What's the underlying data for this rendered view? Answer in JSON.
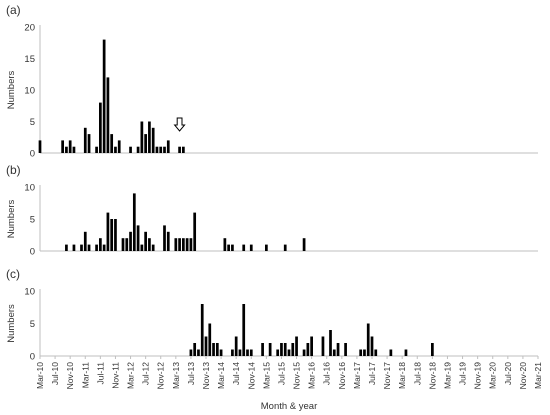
{
  "chart_data": [
    {
      "type": "bar",
      "panel_label": "(a)",
      "ylabel": "Numbers",
      "ylim": [
        0,
        20
      ],
      "yticks": [
        0,
        5,
        10,
        15,
        20
      ],
      "data": [
        {
          "x": "2010-03",
          "y": 2
        },
        {
          "x": "2010-09",
          "y": 2
        },
        {
          "x": "2010-10",
          "y": 1
        },
        {
          "x": "2010-11",
          "y": 2
        },
        {
          "x": "2010-12",
          "y": 1
        },
        {
          "x": "2011-03",
          "y": 4
        },
        {
          "x": "2011-04",
          "y": 3
        },
        {
          "x": "2011-06",
          "y": 1
        },
        {
          "x": "2011-07",
          "y": 8
        },
        {
          "x": "2011-08",
          "y": 18
        },
        {
          "x": "2011-09",
          "y": 12
        },
        {
          "x": "2011-10",
          "y": 3
        },
        {
          "x": "2011-11",
          "y": 1
        },
        {
          "x": "2011-12",
          "y": 2
        },
        {
          "x": "2012-03",
          "y": 1
        },
        {
          "x": "2012-05",
          "y": 1
        },
        {
          "x": "2012-06",
          "y": 5
        },
        {
          "x": "2012-07",
          "y": 3
        },
        {
          "x": "2012-08",
          "y": 5
        },
        {
          "x": "2012-09",
          "y": 4
        },
        {
          "x": "2012-10",
          "y": 1
        },
        {
          "x": "2012-11",
          "y": 1
        },
        {
          "x": "2012-12",
          "y": 1
        },
        {
          "x": "2013-01",
          "y": 2
        },
        {
          "x": "2013-04",
          "y": 1
        },
        {
          "x": "2013-05",
          "y": 1
        }
      ],
      "annotation": {
        "type": "arrow-down",
        "x": "2013-04",
        "y": 3.5
      }
    },
    {
      "type": "bar",
      "panel_label": "(b)",
      "ylabel": "Numbers",
      "ylim": [
        0,
        10
      ],
      "yticks": [
        0,
        5,
        10
      ],
      "data": [
        {
          "x": "2010-10",
          "y": 1
        },
        {
          "x": "2010-12",
          "y": 1
        },
        {
          "x": "2011-02",
          "y": 1
        },
        {
          "x": "2011-03",
          "y": 3
        },
        {
          "x": "2011-04",
          "y": 1
        },
        {
          "x": "2011-06",
          "y": 1
        },
        {
          "x": "2011-07",
          "y": 2
        },
        {
          "x": "2011-08",
          "y": 1
        },
        {
          "x": "2011-09",
          "y": 6
        },
        {
          "x": "2011-10",
          "y": 5
        },
        {
          "x": "2011-11",
          "y": 5
        },
        {
          "x": "2012-01",
          "y": 2
        },
        {
          "x": "2012-02",
          "y": 2
        },
        {
          "x": "2012-03",
          "y": 3
        },
        {
          "x": "2012-04",
          "y": 9
        },
        {
          "x": "2012-05",
          "y": 4
        },
        {
          "x": "2012-06",
          "y": 1
        },
        {
          "x": "2012-07",
          "y": 3
        },
        {
          "x": "2012-08",
          "y": 2
        },
        {
          "x": "2012-09",
          "y": 1
        },
        {
          "x": "2012-12",
          "y": 4
        },
        {
          "x": "2013-01",
          "y": 3
        },
        {
          "x": "2013-03",
          "y": 2
        },
        {
          "x": "2013-04",
          "y": 2
        },
        {
          "x": "2013-05",
          "y": 2
        },
        {
          "x": "2013-06",
          "y": 2
        },
        {
          "x": "2013-07",
          "y": 2
        },
        {
          "x": "2013-08",
          "y": 6
        },
        {
          "x": "2014-04",
          "y": 2
        },
        {
          "x": "2014-05",
          "y": 1
        },
        {
          "x": "2014-06",
          "y": 1
        },
        {
          "x": "2014-09",
          "y": 1
        },
        {
          "x": "2014-11",
          "y": 1
        },
        {
          "x": "2015-03",
          "y": 1
        },
        {
          "x": "2015-08",
          "y": 1
        },
        {
          "x": "2016-01",
          "y": 2
        }
      ]
    },
    {
      "type": "bar",
      "panel_label": "(c)",
      "ylabel": "Numbers",
      "ylim": [
        0,
        10
      ],
      "yticks": [
        0,
        5,
        10
      ],
      "data": [
        {
          "x": "2013-07",
          "y": 1
        },
        {
          "x": "2013-08",
          "y": 2
        },
        {
          "x": "2013-09",
          "y": 1
        },
        {
          "x": "2013-10",
          "y": 8
        },
        {
          "x": "2013-11",
          "y": 3
        },
        {
          "x": "2013-12",
          "y": 5
        },
        {
          "x": "2014-01",
          "y": 2
        },
        {
          "x": "2014-02",
          "y": 2
        },
        {
          "x": "2014-03",
          "y": 1
        },
        {
          "x": "2014-06",
          "y": 1
        },
        {
          "x": "2014-07",
          "y": 3
        },
        {
          "x": "2014-08",
          "y": 1
        },
        {
          "x": "2014-09",
          "y": 8
        },
        {
          "x": "2014-10",
          "y": 1
        },
        {
          "x": "2014-11",
          "y": 1
        },
        {
          "x": "2015-02",
          "y": 2
        },
        {
          "x": "2015-04",
          "y": 2
        },
        {
          "x": "2015-06",
          "y": 1
        },
        {
          "x": "2015-07",
          "y": 2
        },
        {
          "x": "2015-08",
          "y": 2
        },
        {
          "x": "2015-09",
          "y": 1
        },
        {
          "x": "2015-10",
          "y": 2
        },
        {
          "x": "2015-11",
          "y": 3
        },
        {
          "x": "2016-01",
          "y": 1
        },
        {
          "x": "2016-02",
          "y": 2
        },
        {
          "x": "2016-03",
          "y": 3
        },
        {
          "x": "2016-06",
          "y": 3
        },
        {
          "x": "2016-08",
          "y": 4
        },
        {
          "x": "2016-09",
          "y": 1
        },
        {
          "x": "2016-10",
          "y": 2
        },
        {
          "x": "2016-12",
          "y": 2
        },
        {
          "x": "2017-04",
          "y": 1
        },
        {
          "x": "2017-05",
          "y": 1
        },
        {
          "x": "2017-06",
          "y": 5
        },
        {
          "x": "2017-07",
          "y": 3
        },
        {
          "x": "2017-08",
          "y": 1
        },
        {
          "x": "2017-12",
          "y": 1
        },
        {
          "x": "2018-04",
          "y": 1
        },
        {
          "x": "2018-11",
          "y": 2
        }
      ]
    }
  ],
  "x_axis": {
    "label": "Month & year",
    "range": [
      "2010-03",
      "2021-03"
    ],
    "tick_labels": [
      "Mar-10",
      "Jul-10",
      "Nov-10",
      "Mar-11",
      "Jul-11",
      "Nov-11",
      "Mar-12",
      "Jul-12",
      "Nov-12",
      "Mar-13",
      "Jul-13",
      "Nov-13",
      "Mar-14",
      "Jul-14",
      "Nov-14",
      "Mar-15",
      "Jul-15",
      "Nov-15",
      "Mar-16",
      "Jul-16",
      "Nov-16",
      "Mar-17",
      "Jul-17",
      "Nov-17",
      "Mar-18",
      "Jul-18",
      "Nov-18",
      "Mar-19",
      "Jul-19",
      "Nov-19",
      "Mar-20",
      "Jul-20",
      "Nov-20",
      "Mar-21"
    ]
  },
  "colors": {
    "bar": "#000000",
    "axis": "#bfbfbf",
    "text": "#333333"
  }
}
